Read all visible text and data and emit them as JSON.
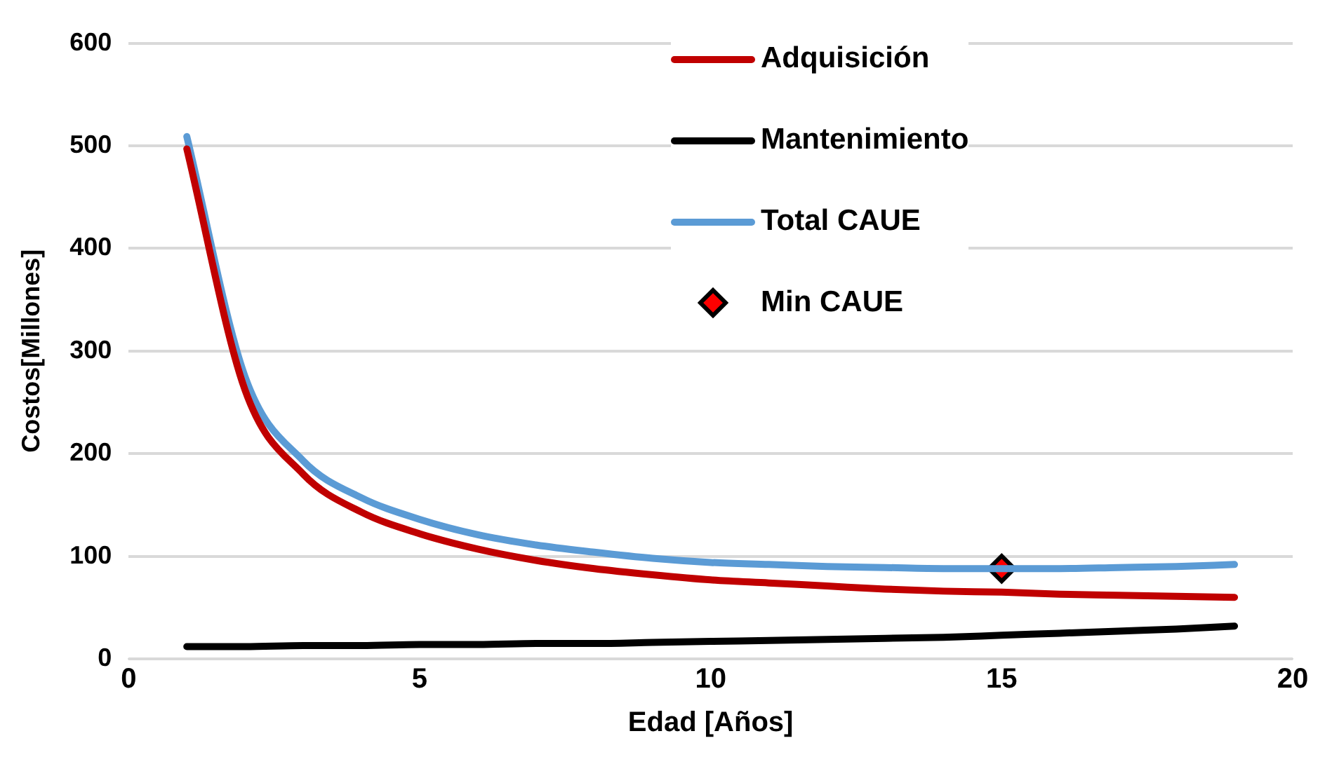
{
  "chart_data": {
    "type": "line",
    "xlabel": "Edad [Años]",
    "ylabel": "Costos[Millones]",
    "x": [
      1,
      2,
      3,
      4,
      5,
      6,
      7,
      8,
      9,
      10,
      11,
      12,
      13,
      14,
      15,
      16,
      17,
      18,
      19
    ],
    "series": [
      {
        "name": "Adquisición",
        "color": "#c00000",
        "values": [
          497,
          262,
          180,
          143,
          122,
          107,
          96,
          88,
          82,
          77,
          74,
          71,
          68,
          66,
          65,
          63,
          62,
          61,
          60
        ]
      },
      {
        "name": "Mantenimiento",
        "color": "#000000",
        "values": [
          12,
          12,
          13,
          13,
          14,
          14,
          15,
          15,
          16,
          17,
          18,
          19,
          20,
          21,
          23,
          25,
          27,
          29,
          32
        ]
      },
      {
        "name": "Total CAUE",
        "color": "#5b9bd5",
        "values": [
          509,
          275,
          193,
          157,
          136,
          121,
          111,
          104,
          98,
          94,
          92,
          90,
          89,
          88,
          88,
          88,
          89,
          90,
          92
        ]
      },
      {
        "name": "Min CAUE",
        "type": "scatter",
        "color": "#ff0000",
        "marker": "diamond",
        "x": [
          15
        ],
        "values": [
          88
        ]
      }
    ],
    "xlim": [
      0,
      20
    ],
    "xticks": [
      0,
      5,
      10,
      15,
      20
    ],
    "ylim": [
      0,
      600
    ],
    "yticks": [
      0,
      100,
      200,
      300,
      400,
      500,
      600
    ],
    "grid": "y",
    "legend": "top",
    "marker": "none"
  }
}
